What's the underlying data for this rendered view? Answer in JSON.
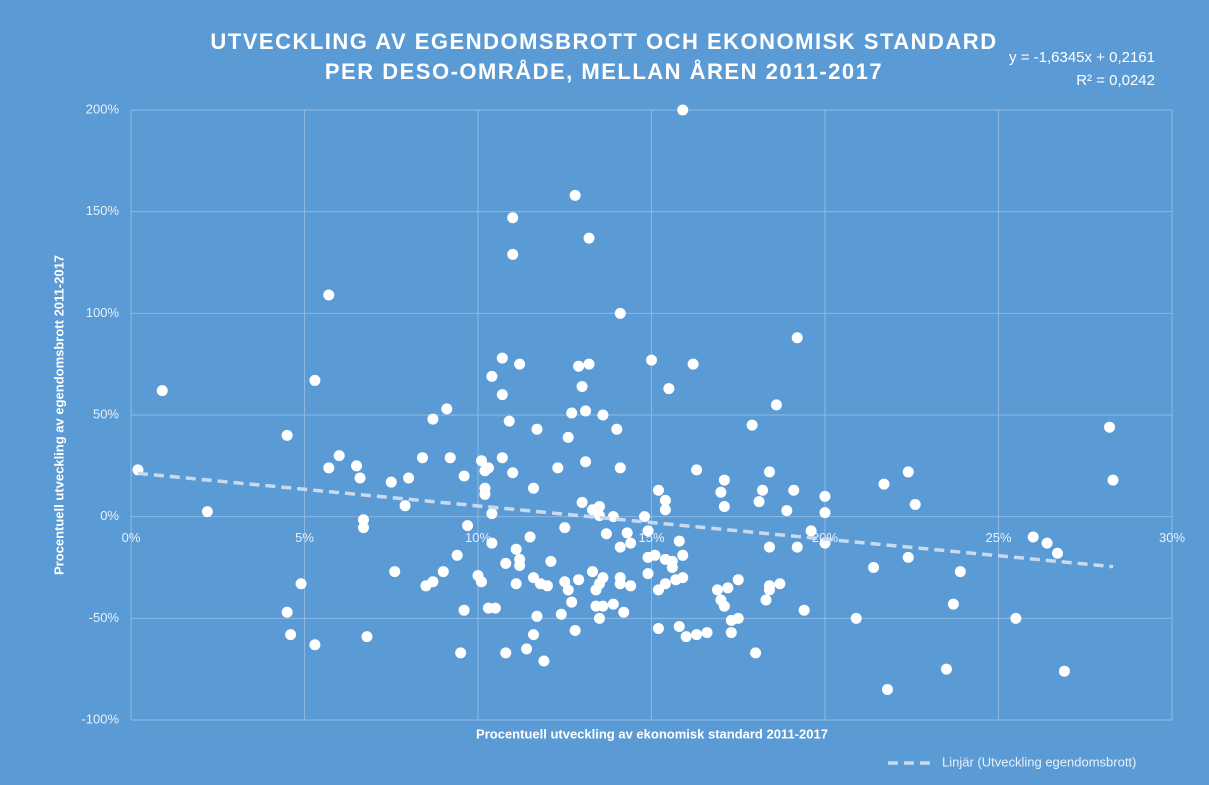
{
  "chart_data": {
    "type": "scatter",
    "title": [
      "UTVECKLING AV EGENDOMSBROTT OCH EKONOMISK STANDARD",
      "PER DESO-OMRÅDE, MELLAN ÅREN 2011-2017"
    ],
    "annotations": [
      "y = -1,6345x + 0,2161",
      "R² = 0,0242"
    ],
    "x_label": "Procentuell utveckling av ekonomisk standard 2011-2017",
    "y_label": "Procentuell utveckling av egendomsbrott 2011-2017",
    "color": "#ffffff",
    "grid": true,
    "legend": "bottom-right",
    "xlim": [
      0,
      30
    ],
    "ylim": [
      -100,
      200
    ],
    "xticks": [
      {
        "value": 0,
        "label": "0%"
      },
      {
        "value": 5,
        "label": "5%"
      },
      {
        "value": 10,
        "label": "10%"
      },
      {
        "value": 15,
        "label": "15%"
      },
      {
        "value": 20,
        "label": "20%"
      },
      {
        "value": 25,
        "label": "25%"
      },
      {
        "value": 30,
        "label": "30%"
      }
    ],
    "yticks": [
      {
        "value": -100,
        "label": "-100%"
      },
      {
        "value": -50,
        "label": "-50%"
      },
      {
        "value": 0,
        "label": "0%"
      },
      {
        "value": 50,
        "label": "50%"
      },
      {
        "value": 100,
        "label": "100%"
      },
      {
        "value": 150,
        "label": "150%"
      },
      {
        "value": 200,
        "label": "200%"
      }
    ],
    "x": [
      0.2,
      0.9,
      2.2,
      4.5,
      4.5,
      4.6,
      4.9,
      5.3,
      5.3,
      5.7,
      5.7,
      6.0,
      6.5,
      6.6,
      6.7,
      6.7,
      6.8,
      7.5,
      7.6,
      7.9,
      8.0,
      8.4,
      8.5,
      8.7,
      8.7,
      9.0,
      9.1,
      9.2,
      9.4,
      9.5,
      9.6,
      9.6,
      9.7,
      10.0,
      10.1,
      10.1,
      10.2,
      10.2,
      10.2,
      10.3,
      10.3,
      10.4,
      10.4,
      10.4,
      10.5,
      10.7,
      10.7,
      10.7,
      10.8,
      10.8,
      10.9,
      11.0,
      11.0,
      11.0,
      11.1,
      11.1,
      11.2,
      11.2,
      11.2,
      11.4,
      11.5,
      11.6,
      11.6,
      11.7,
      11.6,
      11.7,
      11.8,
      11.9,
      12.0,
      12.1,
      12.3,
      12.4,
      12.5,
      12.5,
      12.6,
      12.6,
      12.7,
      12.8,
      12.8,
      12.7,
      12.9,
      12.9,
      13.0,
      13.0,
      13.1,
      13.1,
      13.2,
      13.2,
      13.3,
      13.3,
      13.4,
      13.4,
      13.5,
      13.5,
      13.5,
      13.5,
      13.6,
      13.6,
      13.6,
      13.7,
      13.9,
      13.9,
      14.0,
      14.1,
      14.1,
      14.1,
      14.1,
      14.1,
      14.2,
      14.3,
      14.4,
      14.4,
      14.8,
      14.9,
      14.9,
      14.9,
      15.0,
      15.1,
      15.2,
      15.2,
      15.2,
      15.4,
      15.4,
      15.4,
      15.4,
      15.5,
      15.6,
      15.6,
      15.7,
      15.8,
      15.8,
      15.9,
      15.9,
      15.9,
      16.0,
      16.2,
      16.3,
      16.3,
      16.6,
      16.9,
      17.0,
      17.0,
      17.1,
      17.1,
      17.1,
      17.2,
      17.3,
      17.3,
      17.5,
      17.5,
      17.9,
      18.0,
      18.1,
      18.2,
      18.3,
      18.4,
      18.4,
      18.4,
      18.4,
      18.6,
      18.7,
      18.9,
      19.1,
      19.2,
      19.2,
      19.4,
      19.6,
      20.0,
      20.0,
      20.0,
      20.9,
      21.4,
      21.7,
      21.8,
      22.4,
      22.4,
      22.6,
      23.5,
      23.7,
      23.9,
      25.5,
      26.0,
      26.4,
      26.7,
      26.9,
      28.2,
      28.3
    ],
    "values": [
      23,
      62,
      2.5,
      40,
      -47,
      -58,
      -33,
      67,
      -63,
      109,
      24,
      30,
      25,
      19,
      -1.5,
      -5.4,
      -59,
      17,
      -27,
      5.4,
      19,
      29,
      -34,
      -32,
      48,
      -27,
      53,
      29,
      -19,
      -67,
      20,
      -46,
      -4.4,
      -29,
      -32,
      27.5,
      14,
      11,
      22.6,
      -45,
      24,
      69,
      1.5,
      -13,
      -45,
      29,
      78,
      60,
      -67,
      -23,
      47,
      147,
      129,
      21.6,
      -16,
      -33,
      -21,
      -24,
      75,
      -65,
      -10,
      14,
      -30,
      -49,
      -58,
      43,
      -33,
      -71,
      -34,
      -22,
      24,
      -48,
      -5.4,
      -32,
      -36,
      39,
      51,
      158,
      -56,
      -42,
      74,
      -31,
      7,
      64,
      27,
      52,
      75,
      137,
      -27,
      3.4,
      -36,
      -44,
      -33,
      5,
      0.5,
      -50,
      50,
      -44,
      -30,
      -8.4,
      0,
      -43,
      43,
      24,
      -33,
      100,
      -15,
      -30,
      -47,
      -8,
      -13,
      -34,
      0,
      -7,
      -28,
      -20,
      77,
      -19,
      13,
      -55,
      -36,
      -21,
      8,
      3.4,
      -33,
      63,
      -25,
      -22,
      -31,
      -12,
      -54,
      200,
      -19,
      -30,
      -59,
      75,
      -58,
      23,
      -57,
      -36,
      12,
      -41,
      18,
      5,
      -44,
      -35,
      -57,
      -51,
      -31,
      -50,
      45,
      -67,
      7.4,
      13,
      -41,
      22,
      -34,
      -36,
      -15,
      55,
      -33,
      3,
      13,
      88,
      -15,
      -46,
      -7,
      10,
      2,
      -13,
      -50,
      -25,
      16,
      -85,
      22,
      -20,
      6,
      -75,
      -43,
      -27,
      -50,
      -10,
      -13,
      -18,
      -76,
      44,
      18
    ],
    "trendline": {
      "name": "Linjär (Utveckling egendomsbrott)",
      "color": "#c9daf0",
      "x": [
        0.2,
        28.3
      ],
      "values": [
        21.3,
        -24.6
      ]
    }
  }
}
